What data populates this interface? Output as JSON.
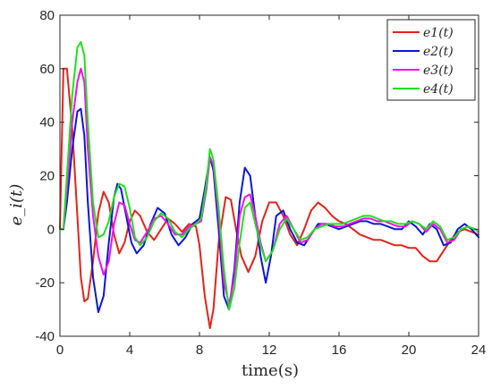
{
  "chart_data": {
    "type": "line",
    "xlabel": "time(s)",
    "ylabel": "e_i(t)",
    "xlim": [
      0,
      24
    ],
    "ylim": [
      -40,
      80
    ],
    "xticks": [
      0,
      4,
      8,
      12,
      16,
      20,
      24
    ],
    "yticks": [
      -40,
      -20,
      0,
      20,
      40,
      60,
      80
    ],
    "grid": false,
    "legend_position": "top-right",
    "series": [
      {
        "name": "e1(t)",
        "color": "#e3231a",
        "x": [
          0,
          0.2,
          0.4,
          0.7,
          1.0,
          1.2,
          1.4,
          1.6,
          1.9,
          2.2,
          2.5,
          2.8,
          3.1,
          3.4,
          3.7,
          4.0,
          4.3,
          4.6,
          5.0,
          5.4,
          5.8,
          6.2,
          6.6,
          7.0,
          7.4,
          7.8,
          8.0,
          8.3,
          8.6,
          8.8,
          9.1,
          9.5,
          9.8,
          10.1,
          10.4,
          10.8,
          11.2,
          11.6,
          12.0,
          12.4,
          12.8,
          13.2,
          13.6,
          14.0,
          14.4,
          14.8,
          15.2,
          15.6,
          16.0,
          16.4,
          16.8,
          17.2,
          17.6,
          18.0,
          18.4,
          18.8,
          19.2,
          19.6,
          20.0,
          20.4,
          20.8,
          21.2,
          21.6,
          22.0,
          22.4,
          22.8,
          23.2,
          23.6,
          24.0
        ],
        "y": [
          0,
          60,
          60,
          38,
          5,
          -18,
          -27,
          -26,
          -12,
          6,
          14,
          10,
          -2,
          -9,
          -5,
          3,
          7,
          5,
          -1,
          -4,
          0,
          4,
          2,
          -1,
          2,
          1,
          -6,
          -25,
          -37,
          -30,
          -5,
          12,
          11,
          0,
          -10,
          -16,
          -10,
          3,
          10,
          10,
          5,
          -2,
          -6,
          0,
          7,
          10,
          8,
          5,
          3,
          2,
          0,
          -2,
          -3,
          -4,
          -4,
          -5,
          -6,
          -6,
          -7,
          -7,
          -10,
          -12,
          -12,
          -8,
          -4,
          -1,
          0,
          -1,
          -2
        ]
      },
      {
        "name": "e2(t)",
        "color": "#0b17d4",
        "x": [
          0,
          0.2,
          0.4,
          0.7,
          1.0,
          1.2,
          1.4,
          1.6,
          1.9,
          2.2,
          2.5,
          2.8,
          3.1,
          3.3,
          3.5,
          3.8,
          4.1,
          4.4,
          4.8,
          5.2,
          5.6,
          6.0,
          6.4,
          6.8,
          7.2,
          7.6,
          8.0,
          8.3,
          8.6,
          8.8,
          9.1,
          9.4,
          9.7,
          10.0,
          10.3,
          10.6,
          10.9,
          11.2,
          11.5,
          11.8,
          12.1,
          12.4,
          12.8,
          13.2,
          13.6,
          14.0,
          14.4,
          14.8,
          15.2,
          15.6,
          16.0,
          16.4,
          16.8,
          17.2,
          17.6,
          18.0,
          18.4,
          18.8,
          19.2,
          19.6,
          20.0,
          20.4,
          20.8,
          21.2,
          21.6,
          22.0,
          22.4,
          22.8,
          23.2,
          23.6,
          24.0
        ],
        "y": [
          0,
          0,
          10,
          30,
          44,
          45,
          35,
          10,
          -18,
          -31,
          -25,
          -5,
          12,
          17,
          15,
          5,
          -5,
          -9,
          -6,
          2,
          8,
          6,
          -2,
          -6,
          -3,
          2,
          4,
          15,
          27,
          22,
          0,
          -25,
          -30,
          -15,
          10,
          23,
          20,
          5,
          -10,
          -20,
          -10,
          5,
          7,
          0,
          -5,
          -6,
          -2,
          2,
          2,
          1,
          0,
          1,
          2,
          3,
          3,
          2,
          2,
          1,
          0,
          0,
          3,
          1,
          -2,
          2,
          0,
          -6,
          -5,
          0,
          2,
          0,
          -3
        ]
      },
      {
        "name": "e3(t)",
        "color": "#f20ff0",
        "x": [
          0,
          0.2,
          0.4,
          0.7,
          1.0,
          1.2,
          1.4,
          1.6,
          1.9,
          2.2,
          2.5,
          2.8,
          3.1,
          3.4,
          3.7,
          4.0,
          4.3,
          4.6,
          5.0,
          5.4,
          5.8,
          6.2,
          6.6,
          7.0,
          7.4,
          7.8,
          8.1,
          8.4,
          8.6,
          8.8,
          9.1,
          9.4,
          9.7,
          10.0,
          10.3,
          10.6,
          10.9,
          11.2,
          11.5,
          11.8,
          12.2,
          12.6,
          13.0,
          13.4,
          13.8,
          14.2,
          14.6,
          15.0,
          15.4,
          15.8,
          16.2,
          16.6,
          17.0,
          17.4,
          17.8,
          18.2,
          18.6,
          19.0,
          19.4,
          19.8,
          20.2,
          20.6,
          21.0,
          21.4,
          21.8,
          22.2,
          22.6,
          23.0,
          23.4,
          23.8,
          24.0
        ],
        "y": [
          0,
          0,
          15,
          40,
          55,
          60,
          55,
          30,
          5,
          -10,
          -17,
          -12,
          2,
          10,
          9,
          2,
          -4,
          -5,
          -1,
          4,
          5,
          2,
          -2,
          -2,
          1,
          2,
          3,
          15,
          27,
          24,
          5,
          -20,
          -28,
          -18,
          5,
          12,
          13,
          5,
          -5,
          -12,
          -8,
          2,
          5,
          0,
          -5,
          -4,
          0,
          2,
          2,
          1,
          1,
          2,
          3,
          4,
          4,
          3,
          3,
          2,
          1,
          1,
          3,
          2,
          -1,
          2,
          0,
          -5,
          -4,
          0,
          1,
          0,
          -1
        ]
      },
      {
        "name": "e4(t)",
        "color": "#20e01c",
        "x": [
          0,
          0.2,
          0.4,
          0.7,
          1.0,
          1.2,
          1.4,
          1.6,
          1.9,
          2.2,
          2.5,
          2.8,
          3.1,
          3.4,
          3.7,
          4.0,
          4.3,
          4.6,
          5.0,
          5.4,
          5.8,
          6.2,
          6.6,
          7.0,
          7.4,
          7.8,
          8.1,
          8.4,
          8.6,
          8.8,
          9.1,
          9.4,
          9.7,
          10.0,
          10.3,
          10.6,
          10.9,
          11.2,
          11.5,
          11.8,
          12.2,
          12.6,
          13.0,
          13.4,
          13.8,
          14.2,
          14.6,
          15.0,
          15.4,
          15.8,
          16.2,
          16.6,
          17.0,
          17.4,
          17.8,
          18.2,
          18.6,
          19.0,
          19.4,
          19.8,
          20.2,
          20.6,
          21.0,
          21.4,
          21.8,
          22.2,
          22.6,
          23.0,
          23.4,
          23.8,
          24.0
        ],
        "y": [
          0,
          0,
          20,
          50,
          68,
          70,
          65,
          40,
          10,
          -3,
          -2,
          3,
          12,
          17,
          16,
          8,
          -3,
          -6,
          -3,
          3,
          6,
          4,
          -1,
          -3,
          0,
          2,
          4,
          17,
          30,
          26,
          8,
          -15,
          -30,
          -22,
          -5,
          8,
          10,
          2,
          -6,
          -12,
          -8,
          0,
          4,
          0,
          -4,
          -3,
          0,
          1,
          2,
          2,
          2,
          3,
          4,
          5,
          5,
          4,
          3,
          3,
          2,
          2,
          3,
          2,
          0,
          3,
          1,
          -4,
          -3,
          0,
          1,
          0,
          -1
        ]
      }
    ]
  }
}
